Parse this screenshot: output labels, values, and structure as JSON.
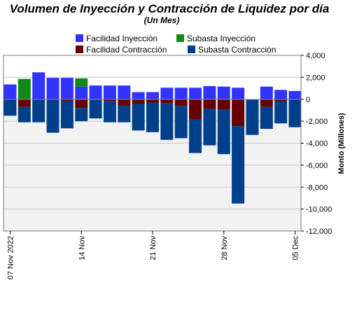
{
  "chart_data": {
    "type": "bar",
    "title": "Volumen de Inyección y Contracción de Liquidez por día",
    "subtitle": "(Un Mes)",
    "ylabel": "Monto (Millones)",
    "xlabel": "",
    "ylim": [
      -12000,
      4000
    ],
    "yticks": [
      4000,
      2000,
      0,
      -2000,
      -4000,
      -6000,
      -8000,
      -10000,
      -12000
    ],
    "ytick_labels": [
      "4,000",
      "2,000",
      "0",
      "-2,000",
      "-4,000",
      "-6,000",
      "-8,000",
      "-10,000",
      "-12,000"
    ],
    "xtick_labels": [
      "07 Nov 2022",
      "14 Nov",
      "21 Nov",
      "28 Nov",
      "05 Dec"
    ],
    "xtick_positions": [
      0,
      5,
      10,
      15,
      20
    ],
    "grid": true,
    "legend_position": "top",
    "stacked": true,
    "days": [
      "2022-11-07",
      "2022-11-08",
      "2022-11-09",
      "2022-11-10",
      "2022-11-11",
      "2022-11-14",
      "2022-11-15",
      "2022-11-16",
      "2022-11-17",
      "2022-11-18",
      "2022-11-21",
      "2022-11-22",
      "2022-11-23",
      "2022-11-24",
      "2022-11-25",
      "2022-11-28",
      "2022-11-29",
      "2022-11-30",
      "2022-12-01",
      "2022-12-02",
      "2022-12-05",
      "2022-12-06"
    ],
    "series": [
      {
        "name": "Facilidad Inyección",
        "color": "#3333ff",
        "values": [
          1350,
          0,
          2450,
          1950,
          1950,
          1150,
          1250,
          1250,
          1250,
          650,
          650,
          1050,
          1050,
          1050,
          1200,
          1150,
          1050,
          0,
          1150,
          850,
          750,
          0
        ]
      },
      {
        "name": "Subasta Inyección",
        "color": "#11881a",
        "values": [
          0,
          1850,
          0,
          0,
          0,
          750,
          0,
          0,
          0,
          0,
          0,
          0,
          0,
          0,
          0,
          0,
          0,
          0,
          0,
          0,
          0,
          0
        ]
      },
      {
        "name": "Facilidad Contracción",
        "color": "#660000",
        "values": [
          0,
          -700,
          0,
          0,
          -200,
          -800,
          0,
          -150,
          -600,
          -400,
          -300,
          -350,
          -600,
          -1800,
          -850,
          -950,
          -2450,
          0,
          -700,
          -200,
          0,
          0
        ]
      },
      {
        "name": "Subasta Contracción",
        "color": "#003f8a",
        "values": [
          -1500,
          -1400,
          -2100,
          -3050,
          -2450,
          -1200,
          -1750,
          -1950,
          -1500,
          -2450,
          -2700,
          -3350,
          -2950,
          -3100,
          -3350,
          -4050,
          -7050,
          -3250,
          -2000,
          -2000,
          -2550,
          0
        ]
      }
    ]
  }
}
